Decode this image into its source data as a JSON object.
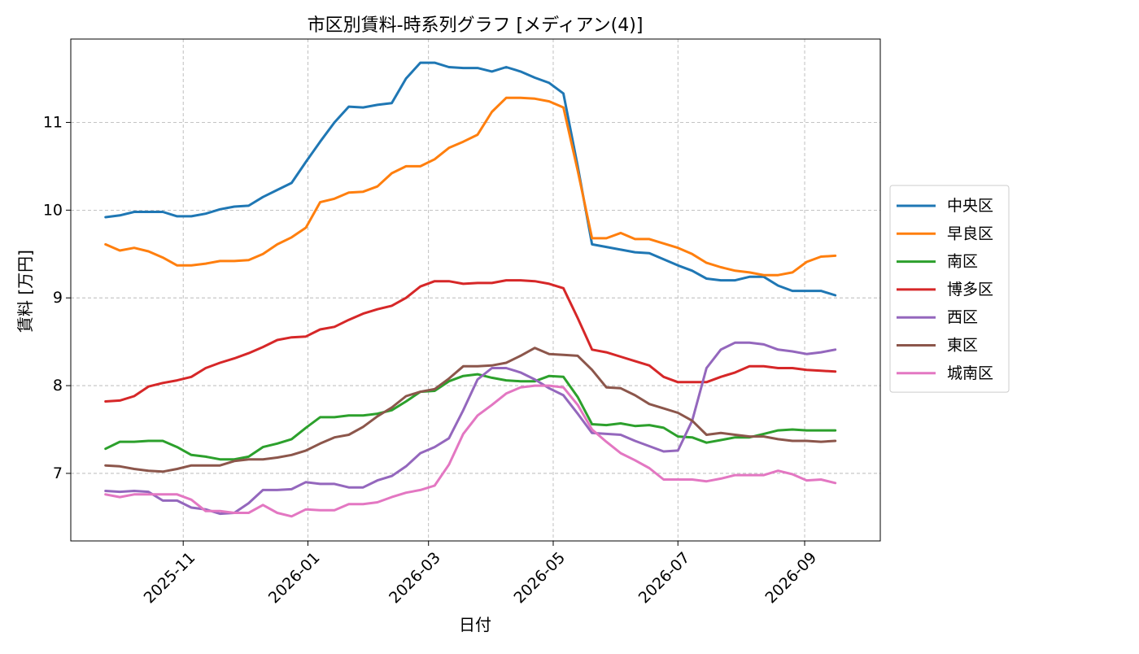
{
  "chart_data": {
    "type": "line",
    "title": "市区別賃料-時系列グラフ [メディアン(4)]",
    "xlabel": "日付",
    "ylabel": "賃料 [万円]",
    "xlim": [
      "2025-09-07",
      "2026-10-08"
    ],
    "ylim": [
      6.23,
      11.95
    ],
    "grid": true,
    "legend_position": "center-right-outside",
    "x_ticks": [
      "2025-11-01",
      "2026-01-01",
      "2026-03-01",
      "2026-05-01",
      "2026-07-01",
      "2026-09-01"
    ],
    "x_tick_labels": [
      "2025-11",
      "2026-01",
      "2026-03",
      "2026-05",
      "2026-07",
      "2026-09"
    ],
    "y_ticks": [
      7,
      8,
      9,
      10,
      11
    ],
    "y_tick_labels": [
      "7",
      "8",
      "9",
      "10",
      "11"
    ],
    "x": [
      "2025-09-24",
      "2025-10-01",
      "2025-10-08",
      "2025-10-15",
      "2025-10-22",
      "2025-10-29",
      "2025-11-05",
      "2025-11-12",
      "2025-11-19",
      "2025-11-26",
      "2025-12-03",
      "2025-12-10",
      "2025-12-17",
      "2025-12-24",
      "2025-12-31",
      "2026-01-07",
      "2026-01-14",
      "2026-01-21",
      "2026-01-28",
      "2026-02-04",
      "2026-02-11",
      "2026-02-18",
      "2026-02-25",
      "2026-03-04",
      "2026-03-11",
      "2026-03-18",
      "2026-03-25",
      "2026-04-01",
      "2026-04-08",
      "2026-04-15",
      "2026-04-22",
      "2026-04-29",
      "2026-05-06",
      "2026-05-13",
      "2026-05-20",
      "2026-05-27",
      "2026-06-03",
      "2026-06-10",
      "2026-06-17",
      "2026-06-24",
      "2026-07-01",
      "2026-07-08",
      "2026-07-15",
      "2026-07-22",
      "2026-07-29",
      "2026-08-05",
      "2026-08-12",
      "2026-08-19",
      "2026-08-26",
      "2026-09-02",
      "2026-09-09",
      "2026-09-16"
    ],
    "series": [
      {
        "name": "中央区",
        "color": "#1f77b4",
        "values": [
          9.92,
          9.94,
          9.98,
          9.98,
          9.98,
          9.93,
          9.93,
          9.96,
          10.01,
          10.04,
          10.05,
          10.15,
          10.23,
          10.31,
          10.55,
          10.78,
          11.0,
          11.18,
          11.17,
          11.2,
          11.22,
          11.5,
          11.68,
          11.68,
          11.63,
          11.62,
          11.62,
          11.58,
          11.63,
          11.58,
          11.51,
          11.45,
          11.33,
          10.5,
          9.61,
          9.58,
          9.55,
          9.52,
          9.51,
          9.44,
          9.37,
          9.31,
          9.22,
          9.2,
          9.2,
          9.24,
          9.24,
          9.14,
          9.08,
          9.08,
          9.08,
          9.03
        ]
      },
      {
        "name": "早良区",
        "color": "#ff7f0e",
        "values": [
          9.61,
          9.54,
          9.57,
          9.53,
          9.46,
          9.37,
          9.37,
          9.39,
          9.42,
          9.42,
          9.43,
          9.5,
          9.61,
          9.69,
          9.8,
          10.09,
          10.13,
          10.2,
          10.21,
          10.27,
          10.42,
          10.5,
          10.5,
          10.58,
          10.71,
          10.78,
          10.86,
          11.12,
          11.28,
          11.28,
          11.27,
          11.24,
          11.17,
          10.45,
          9.68,
          9.68,
          9.74,
          9.67,
          9.67,
          9.62,
          9.57,
          9.5,
          9.4,
          9.35,
          9.31,
          9.29,
          9.26,
          9.26,
          9.29,
          9.41,
          9.47,
          9.48
        ]
      },
      {
        "name": "南区",
        "color": "#2ca02c",
        "values": [
          7.28,
          7.36,
          7.36,
          7.37,
          7.37,
          7.3,
          7.21,
          7.19,
          7.16,
          7.16,
          7.19,
          7.3,
          7.34,
          7.39,
          7.52,
          7.64,
          7.64,
          7.66,
          7.66,
          7.68,
          7.72,
          7.82,
          7.93,
          7.94,
          8.05,
          8.11,
          8.13,
          8.09,
          8.06,
          8.05,
          8.05,
          8.11,
          8.1,
          7.87,
          7.56,
          7.55,
          7.57,
          7.54,
          7.55,
          7.52,
          7.42,
          7.41,
          7.35,
          7.38,
          7.41,
          7.41,
          7.45,
          7.49,
          7.5,
          7.49,
          7.49,
          7.49
        ]
      },
      {
        "name": "博多区",
        "color": "#d62728",
        "values": [
          7.82,
          7.83,
          7.88,
          7.99,
          8.03,
          8.06,
          8.1,
          8.2,
          8.26,
          8.31,
          8.37,
          8.44,
          8.52,
          8.55,
          8.56,
          8.64,
          8.67,
          8.75,
          8.82,
          8.87,
          8.91,
          9.0,
          9.13,
          9.19,
          9.19,
          9.16,
          9.17,
          9.17,
          9.2,
          9.2,
          9.19,
          9.16,
          9.11,
          8.77,
          8.41,
          8.38,
          8.33,
          8.28,
          8.23,
          8.1,
          8.04,
          8.04,
          8.04,
          8.1,
          8.15,
          8.22,
          8.22,
          8.2,
          8.2,
          8.18,
          8.17,
          8.16
        ]
      },
      {
        "name": "西区",
        "color": "#9467bd",
        "values": [
          6.8,
          6.79,
          6.8,
          6.79,
          6.69,
          6.69,
          6.61,
          6.59,
          6.54,
          6.55,
          6.66,
          6.81,
          6.81,
          6.82,
          6.9,
          6.88,
          6.88,
          6.84,
          6.84,
          6.92,
          6.97,
          7.08,
          7.23,
          7.3,
          7.4,
          7.72,
          8.07,
          8.2,
          8.2,
          8.15,
          8.07,
          7.97,
          7.89,
          7.68,
          7.46,
          7.45,
          7.44,
          7.37,
          7.31,
          7.25,
          7.26,
          7.6,
          8.2,
          8.41,
          8.49,
          8.49,
          8.47,
          8.41,
          8.39,
          8.36,
          8.38,
          8.41
        ]
      },
      {
        "name": "東区",
        "color": "#8c564b",
        "values": [
          7.09,
          7.08,
          7.05,
          7.03,
          7.02,
          7.05,
          7.09,
          7.09,
          7.09,
          7.14,
          7.16,
          7.16,
          7.18,
          7.21,
          7.26,
          7.34,
          7.41,
          7.44,
          7.53,
          7.65,
          7.75,
          7.88,
          7.93,
          7.96,
          8.08,
          8.22,
          8.22,
          8.23,
          8.26,
          8.34,
          8.43,
          8.36,
          8.35,
          8.34,
          8.18,
          7.98,
          7.97,
          7.89,
          7.79,
          7.74,
          7.69,
          7.6,
          7.44,
          7.46,
          7.44,
          7.42,
          7.42,
          7.39,
          7.37,
          7.37,
          7.36,
          7.37
        ]
      },
      {
        "name": "城南区",
        "color": "#e377c2",
        "values": [
          6.76,
          6.73,
          6.76,
          6.76,
          6.76,
          6.76,
          6.7,
          6.57,
          6.57,
          6.55,
          6.55,
          6.64,
          6.55,
          6.51,
          6.59,
          6.58,
          6.58,
          6.65,
          6.65,
          6.67,
          6.73,
          6.78,
          6.81,
          6.86,
          7.1,
          7.45,
          7.66,
          7.78,
          7.91,
          7.98,
          8.0,
          8.0,
          7.98,
          7.78,
          7.5,
          7.36,
          7.23,
          7.15,
          7.06,
          6.93,
          6.93,
          6.93,
          6.91,
          6.94,
          6.98,
          6.98,
          6.98,
          7.03,
          6.99,
          6.92,
          6.93,
          6.89
        ]
      }
    ]
  }
}
